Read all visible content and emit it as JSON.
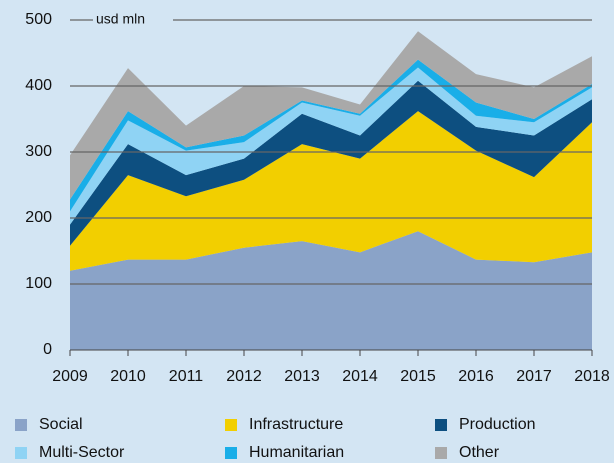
{
  "chart_data": {
    "type": "stacked_area",
    "y_label": "usd mln",
    "x": [
      2009,
      2010,
      2011,
      2012,
      2013,
      2014,
      2015,
      2016,
      2017,
      2018
    ],
    "xlim": [
      2009,
      2018
    ],
    "xticks": [
      2009,
      2010,
      2011,
      2012,
      2013,
      2014,
      2015,
      2016,
      2017,
      2018
    ],
    "ylim": [
      0,
      500
    ],
    "yticks": [
      0,
      100,
      200,
      300,
      400,
      500
    ],
    "grid": true,
    "legend": "bottom",
    "series": [
      {
        "name": "Social",
        "color": "#8aa3c8",
        "values": [
          120,
          137,
          137,
          155,
          165,
          148,
          180,
          137,
          133,
          148
        ]
      },
      {
        "name": "Infrastructure",
        "color": "#f2cf00",
        "values": [
          38,
          128,
          96,
          103,
          147,
          142,
          182,
          165,
          129,
          197
        ]
      },
      {
        "name": "Production",
        "color": "#0d4f80",
        "values": [
          32,
          47,
          32,
          32,
          46,
          35,
          46,
          36,
          63,
          35
        ]
      },
      {
        "name": "Multi-Sector",
        "color": "#8fd3f4",
        "values": [
          20,
          36,
          37,
          25,
          17,
          30,
          20,
          17,
          20,
          18
        ]
      },
      {
        "name": "Humanitarian",
        "color": "#19aee8",
        "values": [
          18,
          14,
          5,
          10,
          3,
          3,
          12,
          20,
          5,
          5
        ]
      },
      {
        "name": "Other",
        "color": "#a9a9a9",
        "values": [
          67,
          65,
          33,
          75,
          20,
          14,
          43,
          43,
          48,
          42
        ]
      }
    ]
  }
}
